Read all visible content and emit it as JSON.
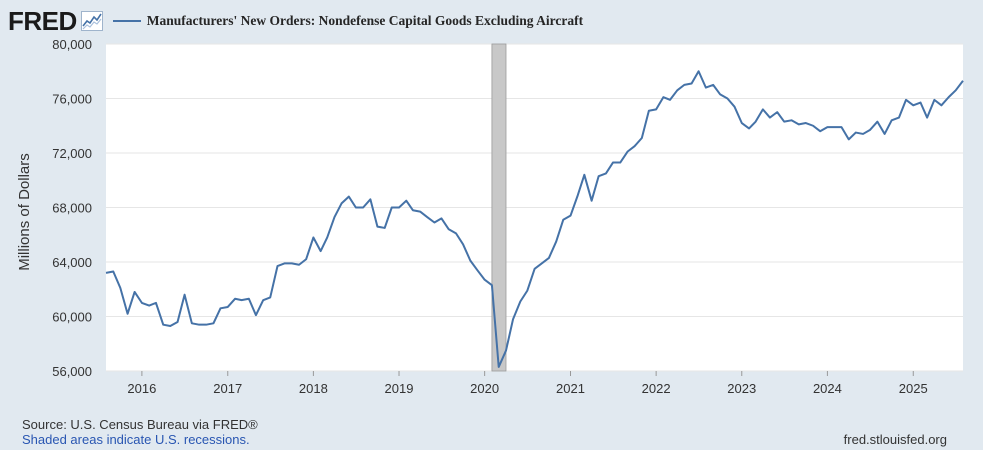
{
  "header": {
    "logo_text": "FRED",
    "logo_icon": "sparkline-icon",
    "series_title": "Manufacturers' New Orders: Nondefense Capital Goods Excluding Aircraft"
  },
  "footer": {
    "source": "Source: U.S. Census Bureau via FRED®",
    "recession_note": "Shaded areas indicate U.S. recessions.",
    "url": "fred.stlouisfed.org"
  },
  "colors": {
    "line": "#4572a7",
    "plot_bg": "#ffffff",
    "page_bg": "#e1e9f0",
    "recession": "#c8c8c8"
  },
  "chart_data": {
    "type": "line",
    "title": "Manufacturers' New Orders: Nondefense Capital Goods Excluding Aircraft",
    "ylabel": "Millions of Dollars",
    "xlabel": "",
    "ylim": [
      56000,
      80000
    ],
    "xlim": [
      "2015-08-01",
      "2025-08-01"
    ],
    "yticks": [
      56000,
      60000,
      64000,
      68000,
      72000,
      76000,
      80000
    ],
    "ytick_labels": [
      "56,000",
      "60,000",
      "64,000",
      "68,000",
      "72,000",
      "76,000",
      "80,000"
    ],
    "xtick_labels": [
      "2016",
      "2017",
      "2018",
      "2019",
      "2020",
      "2021",
      "2022",
      "2023",
      "2024",
      "2025"
    ],
    "grid": "horizontal",
    "recessions": [
      [
        "2020-02-01",
        "2020-04-01"
      ]
    ],
    "series": [
      {
        "x_start": "2015-08-01",
        "frequency": "monthly",
        "values": [
          63200,
          63300,
          62100,
          60200,
          61800,
          61000,
          60800,
          61000,
          59400,
          59300,
          59600,
          61600,
          59500,
          59400,
          59400,
          59500,
          60600,
          60700,
          61300,
          61200,
          61300,
          60100,
          61200,
          61400,
          63700,
          63900,
          63900,
          63800,
          64200,
          65800,
          64800,
          65800,
          67300,
          68300,
          68800,
          68000,
          68000,
          68600,
          66600,
          66500,
          68000,
          68000,
          68500,
          67800,
          67700,
          67300,
          66900,
          67200,
          66400,
          66100,
          65300,
          64100,
          63400,
          62700,
          62300,
          56300,
          57500,
          59800,
          61100,
          61900,
          63500,
          63900,
          64300,
          65500,
          67100,
          67400,
          68900,
          70400,
          68500,
          70300,
          70500,
          71300,
          71300,
          72100,
          72500,
          73100,
          75100,
          75200,
          76100,
          75900,
          76600,
          77000,
          77100,
          78000,
          76800,
          77000,
          76300,
          76000,
          75400,
          74200,
          73800,
          74300,
          75200,
          74600,
          75000,
          74300,
          74400,
          74100,
          74200,
          74000,
          73600,
          73900,
          73900,
          73900,
          73000,
          73500,
          73400,
          73700,
          74300,
          73400,
          74400,
          74600,
          75900,
          75500,
          75700,
          74600,
          75900,
          75500,
          76100,
          76600,
          77300
        ]
      }
    ]
  }
}
